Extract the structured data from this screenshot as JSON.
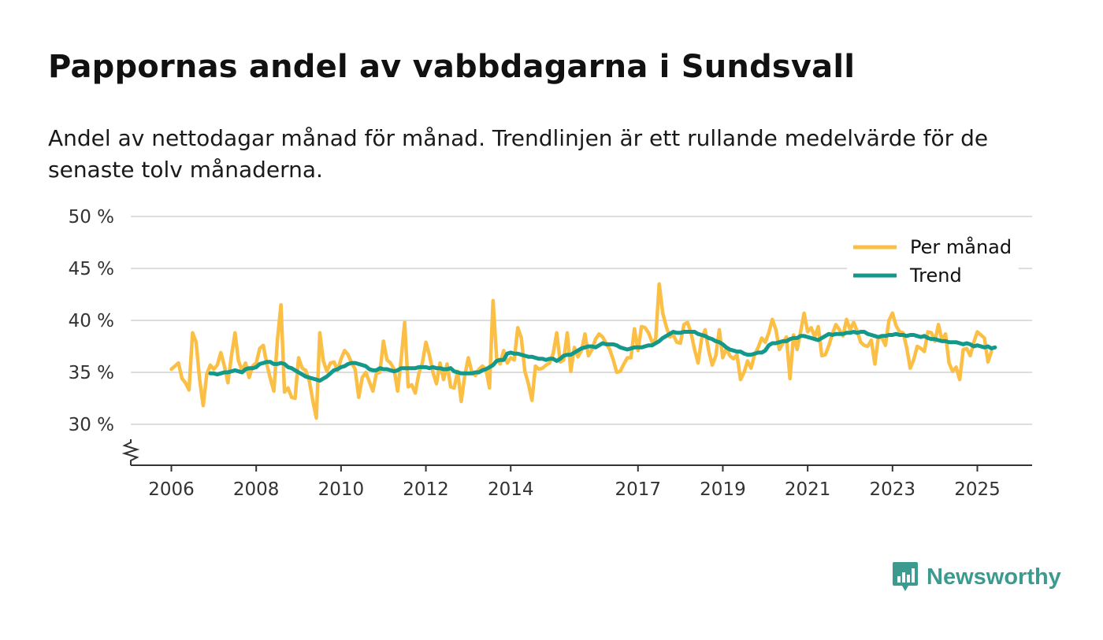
{
  "title": "Pappornas andel av vabbdagarna i Sundsvall",
  "subtitle": "Andel av nettodagar månad för månad. Trendlinjen är ett rullande medelvärde för de senaste tolv månaderna.",
  "colors": {
    "monthly": "#fbbf45",
    "trend": "#13988a",
    "grid": "#dddddd",
    "axis": "#333333",
    "brand": "#3c9a8f"
  },
  "brand": {
    "name": "Newsworthy",
    "icon": "bar-chart-icon"
  },
  "chart_data": {
    "type": "line",
    "title": "Pappornas andel av vabbdagarna i Sundsvall",
    "xlabel": "",
    "ylabel": "",
    "ylim": [
      26,
      50
    ],
    "xlim": [
      2005.0,
      2026.33
    ],
    "y_ticks": [
      30,
      35,
      40,
      45,
      50
    ],
    "y_tick_labels": [
      "30 %",
      "35 %",
      "40 %",
      "45 %",
      "50 %"
    ],
    "axis_break": true,
    "x_ticks": [
      2006,
      2008,
      2010,
      2012,
      2014,
      2017,
      2019,
      2021,
      2023,
      2025
    ],
    "x_tick_labels": [
      "2006",
      "2008",
      "2010",
      "2012",
      "2014",
      "2017",
      "2019",
      "2021",
      "2023",
      "2025"
    ],
    "legend": {
      "placement": "top-right",
      "entries": [
        "Per månad",
        "Trend"
      ]
    },
    "x_start": 2006.0,
    "x_step_months": 1,
    "series": [
      {
        "name": "Per månad",
        "values": [
          35.3,
          35.6,
          35.9,
          34.4,
          34.0,
          33.3,
          38.8,
          37.9,
          34.3,
          31.8,
          34.8,
          35.7,
          35.3,
          35.7,
          36.9,
          35.6,
          34.0,
          36.6,
          38.8,
          36.1,
          35.2,
          35.9,
          34.5,
          35.6,
          35.9,
          37.3,
          37.6,
          35.8,
          34.4,
          33.2,
          38.1,
          41.5,
          33.1,
          33.5,
          32.6,
          32.5,
          36.4,
          35.4,
          35.2,
          34.2,
          32.3,
          30.6,
          38.8,
          36.1,
          35.1,
          35.9,
          36.0,
          35.2,
          36.3,
          37.1,
          36.7,
          35.9,
          35.3,
          32.6,
          34.5,
          35.0,
          34.1,
          33.2,
          34.9,
          35.0,
          38.0,
          36.2,
          35.9,
          35.3,
          33.2,
          36.2,
          39.8,
          33.6,
          33.8,
          33.0,
          34.9,
          35.9,
          37.9,
          36.7,
          35.0,
          33.9,
          35.9,
          34.3,
          35.8,
          33.6,
          33.5,
          35.1,
          32.2,
          34.7,
          36.4,
          35.0,
          34.7,
          35.3,
          35.6,
          35.3,
          33.5,
          41.9,
          36.4,
          35.8,
          37.1,
          35.9,
          36.4,
          36.2,
          39.3,
          38.3,
          35.1,
          33.9,
          32.3,
          35.6,
          35.3,
          35.4,
          35.7,
          35.9,
          36.8,
          38.8,
          36.0,
          36.2,
          38.8,
          35.1,
          37.4,
          36.5,
          37.1,
          38.7,
          36.6,
          37.2,
          38.2,
          38.7,
          38.4,
          37.8,
          37.2,
          36.2,
          35.0,
          35.1,
          35.8,
          36.4,
          36.4,
          39.2,
          37.1,
          39.4,
          39.3,
          38.8,
          37.9,
          38.2,
          43.5,
          40.7,
          39.4,
          38.4,
          38.6,
          37.9,
          37.8,
          39.6,
          39.8,
          38.8,
          37.2,
          35.9,
          38.2,
          39.1,
          37.1,
          35.7,
          36.6,
          39.1,
          36.4,
          37.3,
          36.6,
          36.3,
          36.7,
          34.3,
          35.0,
          36.1,
          35.4,
          36.7,
          37.4,
          38.3,
          37.9,
          38.8,
          40.1,
          39.1,
          37.2,
          37.8,
          38.4,
          34.4,
          38.6,
          37.2,
          38.9,
          40.7,
          38.9,
          39.3,
          38.4,
          39.4,
          36.6,
          36.7,
          37.6,
          38.7,
          39.6,
          39.1,
          38.5,
          40.1,
          39.1,
          39.8,
          39.0,
          37.9,
          37.6,
          37.5,
          38.1,
          35.8,
          38.4,
          38.3,
          37.6,
          40.0,
          40.7,
          39.5,
          38.9,
          38.8,
          37.4,
          35.4,
          36.2,
          37.5,
          37.3,
          37.0,
          38.9,
          38.8,
          38.0,
          39.6,
          38.1,
          38.7,
          35.9,
          35.1,
          35.5,
          34.3,
          37.2,
          37.3,
          36.6,
          37.9,
          38.9,
          38.6,
          38.3,
          36.0,
          37.0
        ]
      },
      {
        "name": "Trend",
        "start_index": 11,
        "values": [
          34.9,
          34.9,
          34.8,
          34.9,
          35.0,
          35.0,
          35.1,
          35.2,
          35.1,
          35.0,
          35.3,
          35.4,
          35.4,
          35.5,
          35.8,
          35.9,
          36.0,
          36.0,
          35.8,
          35.8,
          35.9,
          35.8,
          35.5,
          35.4,
          35.2,
          35.0,
          34.8,
          34.6,
          34.5,
          34.4,
          34.3,
          34.2,
          34.4,
          34.6,
          34.9,
          35.2,
          35.3,
          35.5,
          35.6,
          35.8,
          35.9,
          35.9,
          35.8,
          35.7,
          35.6,
          35.3,
          35.2,
          35.2,
          35.4,
          35.3,
          35.3,
          35.2,
          35.1,
          35.2,
          35.4,
          35.4,
          35.4,
          35.4,
          35.4,
          35.5,
          35.5,
          35.5,
          35.4,
          35.5,
          35.4,
          35.4,
          35.3,
          35.3,
          35.4,
          35.1,
          35.0,
          34.9,
          34.9,
          34.9,
          34.9,
          35.0,
          35.0,
          35.2,
          35.3,
          35.5,
          35.7,
          36.1,
          36.2,
          36.2,
          36.8,
          36.9,
          36.8,
          36.8,
          36.7,
          36.6,
          36.5,
          36.5,
          36.4,
          36.3,
          36.3,
          36.2,
          36.3,
          36.3,
          36.1,
          36.3,
          36.6,
          36.7,
          36.7,
          36.9,
          37.1,
          37.3,
          37.4,
          37.5,
          37.5,
          37.4,
          37.6,
          37.8,
          37.7,
          37.7,
          37.7,
          37.6,
          37.4,
          37.3,
          37.2,
          37.3,
          37.4,
          37.4,
          37.4,
          37.5,
          37.6,
          37.6,
          37.8,
          38.0,
          38.3,
          38.5,
          38.7,
          38.9,
          38.8,
          38.8,
          38.9,
          38.9,
          38.9,
          38.9,
          38.7,
          38.6,
          38.5,
          38.3,
          38.2,
          38.0,
          37.9,
          37.7,
          37.4,
          37.2,
          37.1,
          37.0,
          37.0,
          36.8,
          36.7,
          36.7,
          36.8,
          36.9,
          36.9,
          37.1,
          37.6,
          37.8,
          37.8,
          37.9,
          38.0,
          38.0,
          38.2,
          38.3,
          38.3,
          38.5,
          38.5,
          38.4,
          38.3,
          38.2,
          38.1,
          38.3,
          38.5,
          38.7,
          38.6,
          38.7,
          38.7,
          38.7,
          38.8,
          38.8,
          38.9,
          38.8,
          38.9,
          38.9,
          38.7,
          38.6,
          38.5,
          38.4,
          38.5,
          38.5,
          38.6,
          38.6,
          38.7,
          38.6,
          38.6,
          38.5,
          38.6,
          38.6,
          38.5,
          38.4,
          38.5,
          38.3,
          38.2,
          38.2,
          38.1,
          38.0,
          38.0,
          37.9,
          37.9,
          37.9,
          37.8,
          37.7,
          37.8,
          37.7,
          37.5,
          37.6,
          37.5,
          37.4,
          37.5,
          37.3,
          37.4
        ]
      }
    ]
  }
}
